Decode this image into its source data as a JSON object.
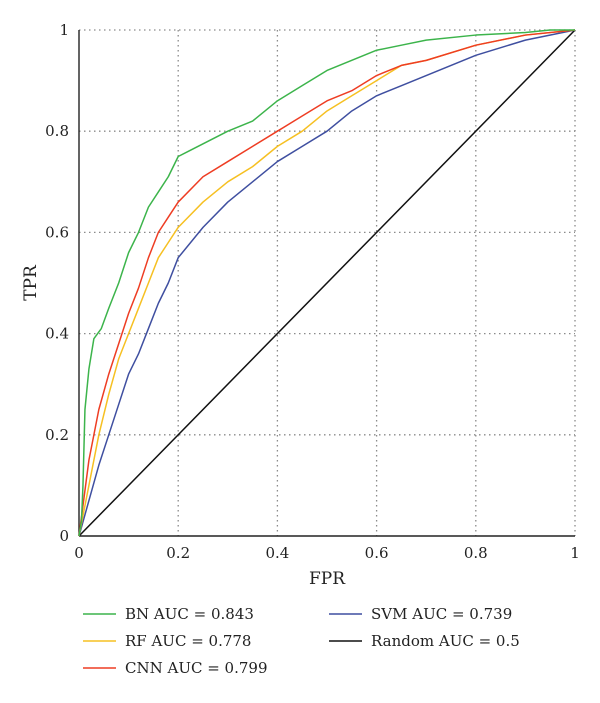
{
  "chart_data": {
    "type": "line",
    "title": "",
    "xlabel": "FPR",
    "ylabel": "TPR",
    "xlim": [
      0,
      1
    ],
    "ylim": [
      0,
      1
    ],
    "xticks": [
      0,
      0.2,
      0.4,
      0.6,
      0.8,
      1
    ],
    "yticks": [
      0,
      0.2,
      0.4,
      0.6,
      0.8,
      1
    ],
    "xtick_labels": [
      "0",
      "0.2",
      "0.4",
      "0.6",
      "0.8",
      "1"
    ],
    "ytick_labels": [
      "0",
      "0.2",
      "0.4",
      "0.6",
      "0.8",
      "1"
    ],
    "grid": true,
    "legend_position": "bottom",
    "series": [
      {
        "name": "BN AUC = 0.843",
        "color": "#3cb44b",
        "x": [
          0,
          0.005,
          0.008,
          0.012,
          0.02,
          0.03,
          0.045,
          0.06,
          0.08,
          0.1,
          0.12,
          0.14,
          0.16,
          0.18,
          0.2,
          0.22,
          0.26,
          0.3,
          0.35,
          0.4,
          0.45,
          0.5,
          0.55,
          0.6,
          0.65,
          0.7,
          0.8,
          0.9,
          0.95,
          1
        ],
        "y": [
          0,
          0.03,
          0.1,
          0.25,
          0.33,
          0.39,
          0.41,
          0.45,
          0.5,
          0.56,
          0.6,
          0.65,
          0.68,
          0.71,
          0.75,
          0.76,
          0.78,
          0.8,
          0.82,
          0.86,
          0.89,
          0.92,
          0.94,
          0.96,
          0.97,
          0.98,
          0.99,
          0.995,
          1,
          1
        ]
      },
      {
        "name": "RF AUC = 0.778",
        "color": "#f6c022",
        "x": [
          0,
          0.02,
          0.04,
          0.06,
          0.08,
          0.1,
          0.12,
          0.14,
          0.16,
          0.18,
          0.2,
          0.25,
          0.3,
          0.35,
          0.4,
          0.45,
          0.5,
          0.55,
          0.6,
          0.65,
          0.7,
          0.8,
          0.9,
          1
        ],
        "y": [
          0,
          0.1,
          0.2,
          0.28,
          0.35,
          0.4,
          0.45,
          0.5,
          0.55,
          0.58,
          0.61,
          0.66,
          0.7,
          0.73,
          0.77,
          0.8,
          0.84,
          0.87,
          0.9,
          0.93,
          0.94,
          0.97,
          0.99,
          1
        ]
      },
      {
        "name": "CNN AUC = 0.799",
        "color": "#ee3d23",
        "x": [
          0,
          0.02,
          0.04,
          0.06,
          0.08,
          0.1,
          0.12,
          0.14,
          0.16,
          0.18,
          0.2,
          0.25,
          0.3,
          0.35,
          0.4,
          0.45,
          0.5,
          0.55,
          0.6,
          0.65,
          0.7,
          0.8,
          0.9,
          1
        ],
        "y": [
          0,
          0.15,
          0.25,
          0.32,
          0.38,
          0.44,
          0.49,
          0.55,
          0.6,
          0.63,
          0.66,
          0.71,
          0.74,
          0.77,
          0.8,
          0.83,
          0.86,
          0.88,
          0.91,
          0.93,
          0.94,
          0.97,
          0.99,
          1
        ]
      },
      {
        "name": "SVM AUC = 0.739",
        "color": "#3f4fa0",
        "x": [
          0,
          0.02,
          0.04,
          0.06,
          0.08,
          0.1,
          0.12,
          0.14,
          0.16,
          0.18,
          0.2,
          0.25,
          0.3,
          0.35,
          0.4,
          0.45,
          0.5,
          0.55,
          0.6,
          0.65,
          0.7,
          0.8,
          0.9,
          1
        ],
        "y": [
          0,
          0.07,
          0.14,
          0.2,
          0.26,
          0.32,
          0.36,
          0.41,
          0.46,
          0.5,
          0.55,
          0.61,
          0.66,
          0.7,
          0.74,
          0.77,
          0.8,
          0.84,
          0.87,
          0.89,
          0.91,
          0.95,
          0.98,
          1
        ]
      },
      {
        "name": "Random AUC = 0.5",
        "color": "#111111",
        "x": [
          0,
          1
        ],
        "y": [
          0,
          1
        ]
      }
    ]
  }
}
